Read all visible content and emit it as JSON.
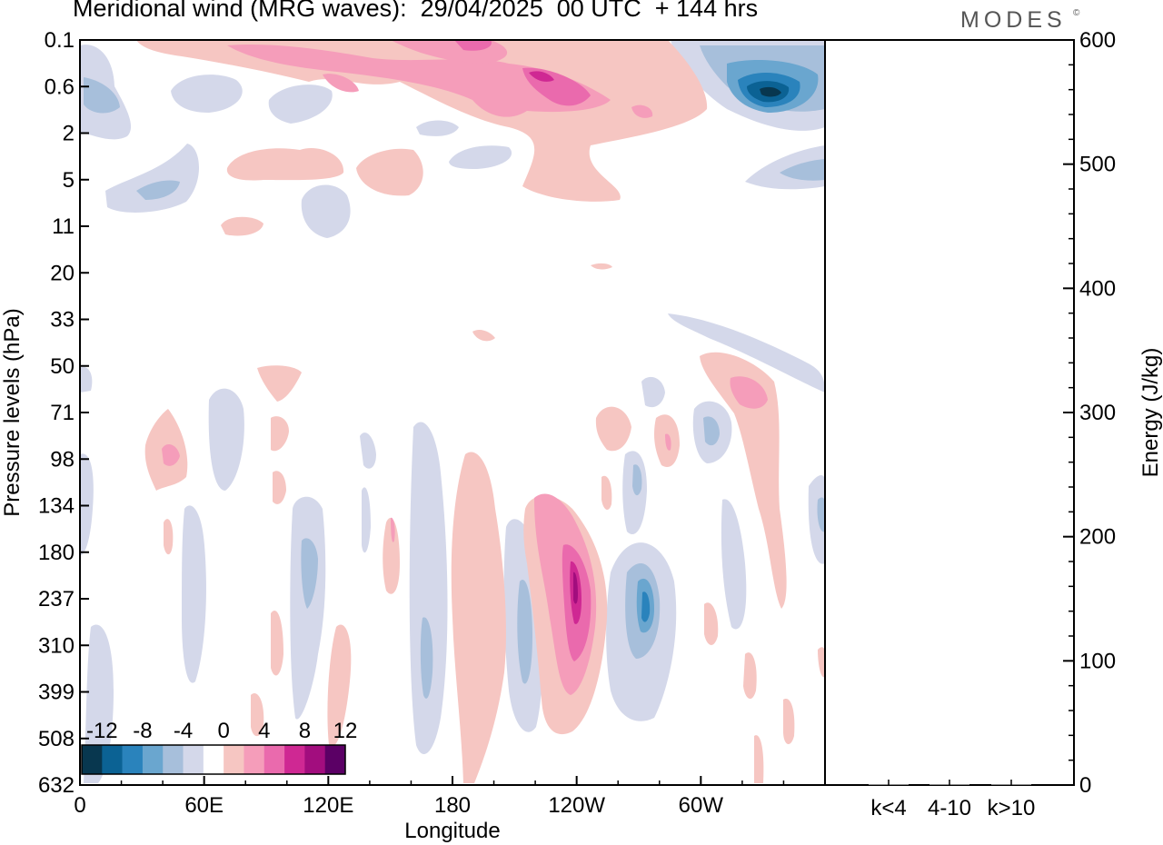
{
  "header": {
    "title": "Meridional wind (MRG waves):  29/04/2025  00 UTC  + 144 hrs",
    "logo": "MODES",
    "logo_mark": "©"
  },
  "chart_data": [
    {
      "type": "heatmap",
      "subtype": "filled-contour",
      "title": "Meridional wind (MRG waves):  29/04/2025  00 UTC  + 144 hrs",
      "xlabel": "Longitude",
      "ylabel": "Pressure levels (hPa)",
      "x_ticks": [
        "0",
        "60E",
        "120E",
        "180",
        "120W",
        "60W"
      ],
      "x_tick_degrees_east": [
        0,
        60,
        120,
        180,
        240,
        300
      ],
      "xlim_degrees_east": [
        0,
        360
      ],
      "y_scale": "log",
      "y_ticks": [
        "0.1",
        "0.6",
        "2",
        "5",
        "11",
        "20",
        "33",
        "50",
        "71",
        "98",
        "134",
        "180",
        "237",
        "310",
        "399",
        "508",
        "632"
      ],
      "ylim": [
        0.1,
        632
      ],
      "colorbar": {
        "labels": [
          "-12",
          "-8",
          "-4",
          "0",
          "4",
          "8",
          "12"
        ],
        "levels": [
          -14,
          -12,
          -10,
          -8,
          -6,
          -4,
          -2,
          2,
          4,
          6,
          8,
          10,
          12,
          14
        ],
        "colors": [
          "#08374f",
          "#0b6294",
          "#2a83bc",
          "#6aa6cf",
          "#a7bfdb",
          "#d4d8ea",
          "#ffffff",
          "#f6c6c2",
          "#f59dba",
          "#ea6aad",
          "#cf2893",
          "#a20d7e",
          "#5b0065"
        ],
        "placement": "bottom-left"
      },
      "features": [
        {
          "sign": "positive",
          "lon": 270,
          "p": 0.5,
          "peak": 7
        },
        {
          "sign": "positive",
          "lon": 217,
          "p": 0.1,
          "peak": 6
        },
        {
          "sign": "negative",
          "lon": 338,
          "p": 0.55,
          "peak": -11
        },
        {
          "sign": "negative",
          "lon": 18,
          "p": 0.7,
          "peak": -4
        },
        {
          "sign": "negative",
          "lon": 40,
          "p": 5,
          "peak": -5
        },
        {
          "sign": "positive",
          "lon": 240,
          "p": 237,
          "peak": 10
        },
        {
          "sign": "negative",
          "lon": 274,
          "p": 237,
          "peak": -6
        },
        {
          "sign": "negative",
          "lon": 112,
          "p": 190,
          "peak": -5
        },
        {
          "sign": "negative",
          "lon": 170,
          "p": 330,
          "peak": -4
        },
        {
          "sign": "negative",
          "lon": 213,
          "p": 330,
          "peak": -4
        },
        {
          "sign": "positive",
          "lon": 42,
          "p": 98,
          "peak": 6
        },
        {
          "sign": "positive",
          "lon": 316,
          "p": 62,
          "peak": 6
        },
        {
          "sign": "negative",
          "lon": 300,
          "p": 80,
          "peak": -4
        }
      ]
    },
    {
      "type": "bar",
      "xlabel": "",
      "ylabel": "Energy (J/kg)",
      "categories": [
        "k<4",
        "4-10",
        "k>10"
      ],
      "values": [
        0,
        0,
        0
      ],
      "ylim": [
        0,
        600
      ],
      "y_ticks": [
        "0",
        "100",
        "200",
        "300",
        "400",
        "500",
        "600"
      ],
      "y_tick_values": [
        0,
        100,
        200,
        300,
        400,
        500,
        600
      ],
      "grid": false
    }
  ]
}
